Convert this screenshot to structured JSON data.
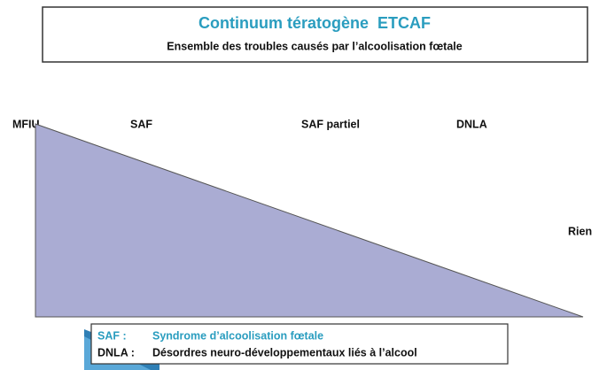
{
  "header": {
    "title": "Continuum tératogène  ETCAF",
    "subtitle": "Ensemble des troubles causés par l’alcoolisation fœtale"
  },
  "scale": {
    "labels": [
      "MFIU",
      "SAF",
      "SAF partiel",
      "DNLA"
    ],
    "end": "Rien"
  },
  "legend": {
    "rows": [
      {
        "abbr": "SAF :",
        "text": "Syndrome d’alcoolisation fœtale"
      },
      {
        "abbr": "DNLA :",
        "text": "Désordres neuro-développementaux liés à l’alcool"
      }
    ]
  }
}
